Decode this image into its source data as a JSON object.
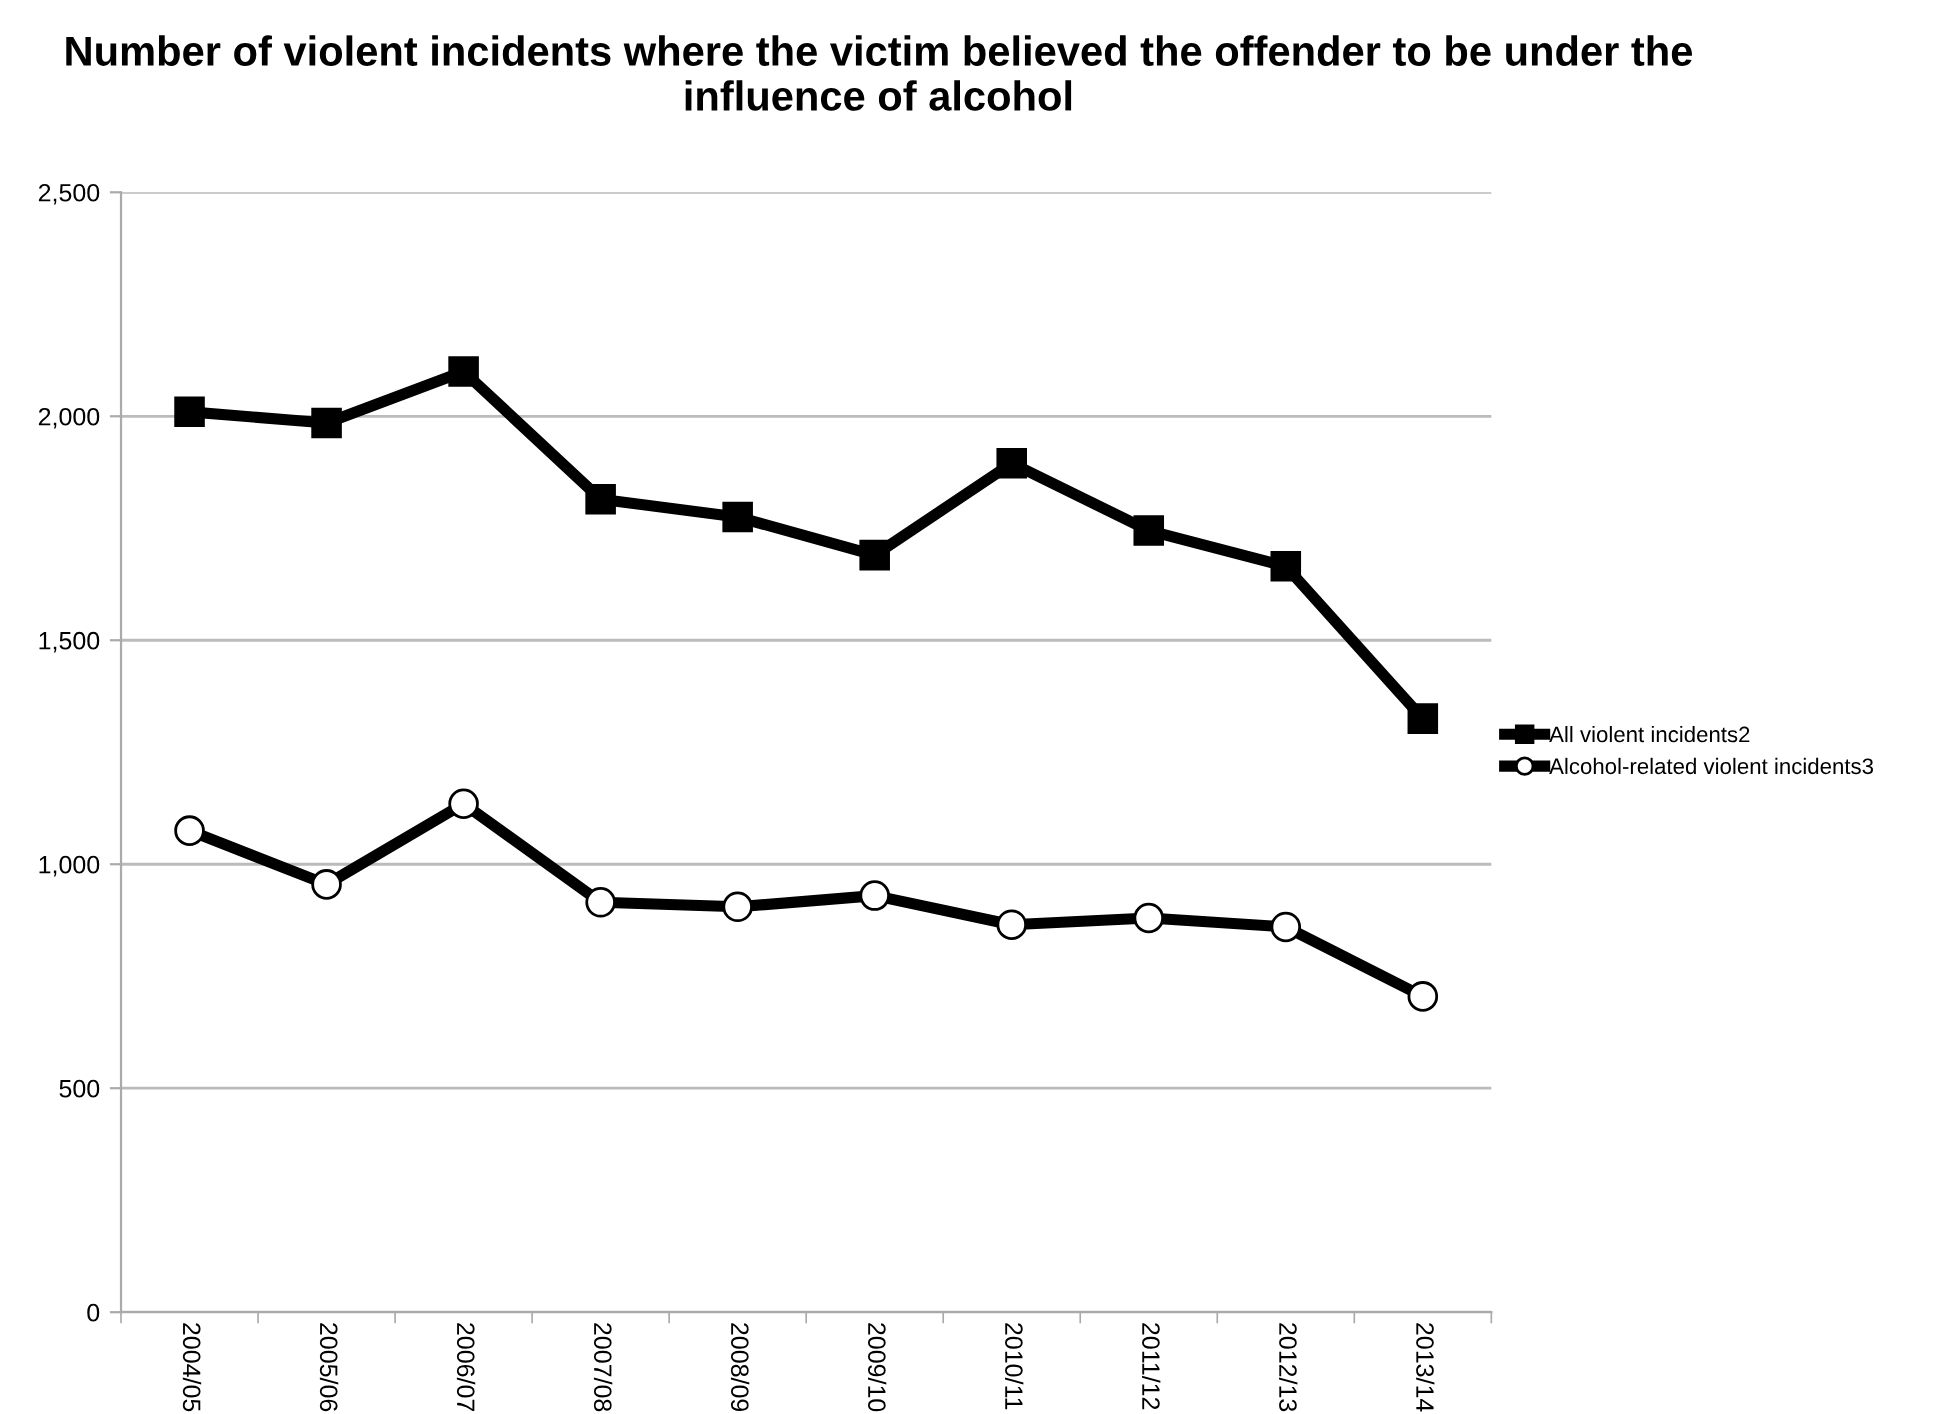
{
  "chart_data": {
    "type": "line",
    "title": "Number of violent incidents where the victim believed the offender to be under the influence of alcohol",
    "categories": [
      "2004/05",
      "2005/06",
      "2006/07",
      "2007/08",
      "2008/09",
      "2009/10",
      "2010/11",
      "2011/12",
      "2012/13",
      "2013/14"
    ],
    "series": [
      {
        "name": "All violent incidents2",
        "color": "#000000",
        "marker": "square",
        "values": [
          2010,
          1985,
          2100,
          1815,
          1775,
          1690,
          1895,
          1745,
          1665,
          1325
        ]
      },
      {
        "name": "Alcohol-related violent incidents3",
        "color": "#000000",
        "marker": "circle",
        "values": [
          1075,
          955,
          1135,
          915,
          905,
          930,
          865,
          880,
          860,
          705
        ]
      }
    ],
    "ylim": [
      0,
      2500
    ],
    "yticks": [
      {
        "value": 0,
        "label": "0"
      },
      {
        "value": 500,
        "label": "500"
      },
      {
        "value": 1000,
        "label": "1,000"
      },
      {
        "value": 1500,
        "label": "1,500"
      },
      {
        "value": 2000,
        "label": "2,000"
      },
      {
        "value": 2500,
        "label": "2,500"
      }
    ],
    "grid": "y",
    "legend": "right",
    "line_style": "solid"
  }
}
